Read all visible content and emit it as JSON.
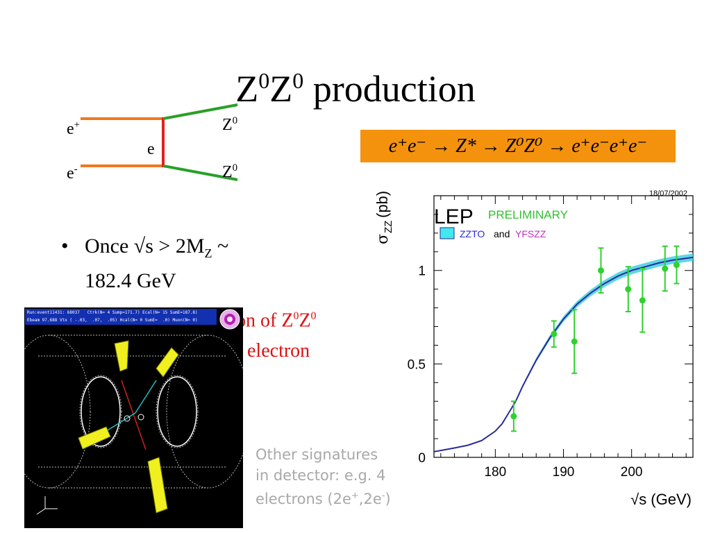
{
  "slide": {
    "title_base": "Z",
    "title_sup": "0",
    "title_rest": " production"
  },
  "feynman": {
    "label_eplus": "e",
    "label_eplus_sup": "+",
    "label_eminus": "e",
    "label_eminus_sup": "-",
    "label_exchange": "e",
    "label_z_top": "Z",
    "label_z_bottom": "Z",
    "label_z_sup": "0",
    "colors": {
      "electron_line": "#f07820",
      "exchange_line": "#e02020",
      "z_line": "#28a028"
    }
  },
  "bullet": {
    "line1_pre": "Once √s > 2M",
    "line1_sub": "Z",
    "line1_post": " ~",
    "line2": "182.4 GeV"
  },
  "overlap_text": {
    "line1_pre": "on of Z",
    "line1_sup": "0",
    "line1_mid": "Z",
    "line1_sup2": "0",
    "line2": "electron"
  },
  "formula": {
    "text": "e⁺e⁻ → Z* → Z⁰Z⁰ → e⁺e⁻e⁺e⁻",
    "background": "#f4920e"
  },
  "other_signatures": {
    "line1": "Other  signatures",
    "line2": "in detector: e.g. 4",
    "line3_pre": "electrons (2e",
    "line3_sup1": "+",
    "line3_mid": ",2e",
    "line3_sup2": "-",
    "line3_post": ")"
  },
  "detector": {
    "header_line1": "Run:event11431: 68037   Ctrk(N= 4 Sump=171.7) Ecal(N= 15 SumE=187.8)",
    "header_line2": "Ebeam 97.688 Vtx ( -.03,  .07,  .05) Hcal(N= 0 SumE=  .0) Muon(N= 0)"
  },
  "chart_data": {
    "type": "line",
    "date_label": "18/07/2002",
    "legend_main": "LEP",
    "legend_preliminary": "PRELIMINARY",
    "legend_zzto": "ZZTO",
    "legend_and": "and",
    "legend_yfszz": "YFSZZ",
    "ylabel_sigma": "σ",
    "ylabel_sub": "ZZ",
    "ylabel_unit": " (pb)",
    "xlabel": "√s (GeV)",
    "xlim": [
      171,
      209
    ],
    "ylim": [
      0,
      1.4
    ],
    "xticks": [
      180,
      190,
      200
    ],
    "yticks": [
      0,
      0.5,
      1
    ],
    "ytick_labels": [
      "0",
      "0.5",
      "1"
    ],
    "prediction_curve": {
      "x": [
        171,
        174,
        176,
        178,
        180,
        181,
        182,
        183,
        184,
        185,
        186,
        188,
        190,
        192,
        194,
        196,
        198,
        200,
        202,
        204,
        206,
        209
      ],
      "y": [
        0.03,
        0.05,
        0.065,
        0.09,
        0.14,
        0.18,
        0.24,
        0.3,
        0.38,
        0.45,
        0.52,
        0.64,
        0.74,
        0.82,
        0.88,
        0.93,
        0.97,
        1.0,
        1.02,
        1.04,
        1.055,
        1.07
      ]
    },
    "band_halfwidth": 0.02,
    "measurements": {
      "x": [
        182.7,
        188.6,
        191.6,
        195.5,
        199.5,
        201.6,
        204.9,
        206.6
      ],
      "y": [
        0.22,
        0.66,
        0.62,
        1.0,
        0.9,
        0.84,
        1.01,
        1.03
      ],
      "err": [
        0.08,
        0.07,
        0.17,
        0.12,
        0.12,
        0.17,
        0.12,
        0.1
      ]
    },
    "colors": {
      "curve": "#2a2a9a",
      "band": "#40d0e0",
      "points": "#30d030",
      "preliminary": "#30c030",
      "zzto": "#2a2adc",
      "yfszz": "#c030c0"
    }
  }
}
